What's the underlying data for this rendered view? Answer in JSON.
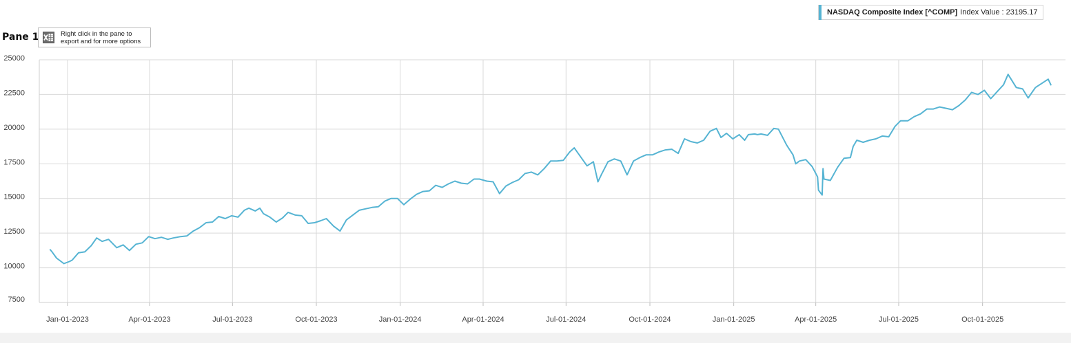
{
  "legend": {
    "series_name": "NASDAQ Composite Index [^COMP]",
    "value_text": "Index Value : 23195.17",
    "color": "#56b4d3"
  },
  "pane": {
    "title": "Pane 1",
    "export_hint": "Right click in the pane to export and for more options",
    "export_icon": "excel-icon"
  },
  "chart_data": {
    "type": "line",
    "title": "",
    "xlabel": "",
    "ylabel": "",
    "ylim": [
      7500,
      25000
    ],
    "xlim": [
      "2022-12-01",
      "2025-12-31"
    ],
    "grid": true,
    "legend_position": "top-right",
    "yticks": [
      "7500",
      "10000",
      "12500",
      "15000",
      "17500",
      "20000",
      "22500",
      "25000"
    ],
    "xticks": [
      {
        "date": "2023-01-01",
        "label": "Jan-01-2023"
      },
      {
        "date": "2023-04-01",
        "label": "Apr-01-2023"
      },
      {
        "date": "2023-07-01",
        "label": "Jul-01-2023"
      },
      {
        "date": "2023-10-01",
        "label": "Oct-01-2023"
      },
      {
        "date": "2024-01-01",
        "label": "Jan-01-2024"
      },
      {
        "date": "2024-04-01",
        "label": "Apr-01-2024"
      },
      {
        "date": "2024-07-01",
        "label": "Jul-01-2024"
      },
      {
        "date": "2024-10-01",
        "label": "Oct-01-2024"
      },
      {
        "date": "2025-01-01",
        "label": "Jan-01-2025"
      },
      {
        "date": "2025-04-01",
        "label": "Apr-01-2025"
      },
      {
        "date": "2025-07-01",
        "label": "Jul-01-2025"
      },
      {
        "date": "2025-10-01",
        "label": "Oct-01-2025"
      }
    ],
    "series": [
      {
        "name": "NASDAQ Composite Index [^COMP]",
        "color": "#56b4d3",
        "x": [
          "2022-12-13",
          "2022-12-15",
          "2022-12-20",
          "2022-12-23",
          "2022-12-28",
          "2023-01-03",
          "2023-01-06",
          "2023-01-13",
          "2023-01-20",
          "2023-01-27",
          "2023-02-02",
          "2023-02-08",
          "2023-02-15",
          "2023-02-24",
          "2023-03-03",
          "2023-03-10",
          "2023-03-17",
          "2023-03-24",
          "2023-03-31",
          "2023-04-07",
          "2023-04-14",
          "2023-04-21",
          "2023-04-27",
          "2023-05-05",
          "2023-05-12",
          "2023-05-19",
          "2023-05-26",
          "2023-06-02",
          "2023-06-09",
          "2023-06-16",
          "2023-06-23",
          "2023-06-30",
          "2023-07-07",
          "2023-07-14",
          "2023-07-19",
          "2023-07-26",
          "2023-07-31",
          "2023-08-04",
          "2023-08-11",
          "2023-08-18",
          "2023-08-25",
          "2023-08-31",
          "2023-09-08",
          "2023-09-15",
          "2023-09-22",
          "2023-09-29",
          "2023-10-06",
          "2023-10-12",
          "2023-10-20",
          "2023-10-27",
          "2023-11-03",
          "2023-11-10",
          "2023-11-17",
          "2023-11-24",
          "2023-12-01",
          "2023-12-08",
          "2023-12-15",
          "2023-12-22",
          "2023-12-29",
          "2024-01-05",
          "2024-01-12",
          "2024-01-19",
          "2024-01-26",
          "2024-02-02",
          "2024-02-09",
          "2024-02-16",
          "2024-02-23",
          "2024-03-01",
          "2024-03-08",
          "2024-03-15",
          "2024-03-22",
          "2024-03-28",
          "2024-04-05",
          "2024-04-12",
          "2024-04-19",
          "2024-04-26",
          "2024-05-03",
          "2024-05-10",
          "2024-05-17",
          "2024-05-24",
          "2024-05-31",
          "2024-06-07",
          "2024-06-14",
          "2024-06-21",
          "2024-06-28",
          "2024-07-05",
          "2024-07-10",
          "2024-07-17",
          "2024-07-24",
          "2024-07-31",
          "2024-08-05",
          "2024-08-09",
          "2024-08-16",
          "2024-08-23",
          "2024-08-30",
          "2024-09-06",
          "2024-09-13",
          "2024-09-20",
          "2024-09-27",
          "2024-10-04",
          "2024-10-11",
          "2024-10-18",
          "2024-10-25",
          "2024-11-01",
          "2024-11-08",
          "2024-11-15",
          "2024-11-22",
          "2024-11-29",
          "2024-12-06",
          "2024-12-13",
          "2024-12-18",
          "2024-12-24",
          "2024-12-31",
          "2025-01-07",
          "2025-01-13",
          "2025-01-17",
          "2025-01-24",
          "2025-01-27",
          "2025-01-31",
          "2025-02-07",
          "2025-02-14",
          "2025-02-19",
          "2025-02-28",
          "2025-03-07",
          "2025-03-10",
          "2025-03-14",
          "2025-03-21",
          "2025-03-28",
          "2025-04-03",
          "2025-04-04",
          "2025-04-08",
          "2025-04-09",
          "2025-04-10",
          "2025-04-17",
          "2025-04-25",
          "2025-05-02",
          "2025-05-09",
          "2025-05-12",
          "2025-05-16",
          "2025-05-23",
          "2025-05-30",
          "2025-06-06",
          "2025-06-13",
          "2025-06-20",
          "2025-06-27",
          "2025-07-03",
          "2025-07-11",
          "2025-07-18",
          "2025-07-25",
          "2025-08-01",
          "2025-08-08",
          "2025-08-15",
          "2025-08-22",
          "2025-08-29",
          "2025-09-05",
          "2025-09-12",
          "2025-09-19",
          "2025-09-26",
          "2025-10-03",
          "2025-10-10",
          "2025-10-17",
          "2025-10-24",
          "2025-10-29",
          "2025-11-07",
          "2025-11-14",
          "2025-11-20",
          "2025-11-28",
          "2025-12-05",
          "2025-12-12",
          "2025-12-15"
        ],
        "values": [
          11300,
          11150,
          10700,
          10550,
          10300,
          10450,
          10550,
          11080,
          11150,
          11600,
          12150,
          11900,
          12050,
          11450,
          11650,
          11250,
          11700,
          11800,
          12250,
          12100,
          12200,
          12050,
          12150,
          12250,
          12300,
          12650,
          12900,
          13250,
          13300,
          13700,
          13550,
          13750,
          13650,
          14150,
          14300,
          14100,
          14300,
          13900,
          13650,
          13300,
          13600,
          14000,
          13800,
          13750,
          13200,
          13250,
          13400,
          13550,
          13000,
          12650,
          13450,
          13800,
          14150,
          14250,
          14350,
          14400,
          14800,
          15000,
          15000,
          14550,
          14950,
          15300,
          15500,
          15550,
          15950,
          15800,
          16050,
          16250,
          16100,
          16050,
          16400,
          16400,
          16250,
          16200,
          15350,
          15900,
          16150,
          16350,
          16800,
          16900,
          16700,
          17150,
          17700,
          17700,
          17750,
          18350,
          18650,
          18000,
          17350,
          17650,
          16200,
          16750,
          17650,
          17850,
          17700,
          16700,
          17700,
          17950,
          18150,
          18150,
          18350,
          18500,
          18550,
          18250,
          19300,
          19100,
          19000,
          19200,
          19850,
          20050,
          19400,
          19700,
          19300,
          19600,
          19200,
          19600,
          19650,
          19600,
          19650,
          19550,
          20050,
          20000,
          18850,
          18150,
          17500,
          17700,
          17800,
          17300,
          16550,
          15600,
          15250,
          17150,
          16400,
          16300,
          17250,
          17900,
          17950,
          18750,
          19200,
          19050,
          19200,
          19300,
          19500,
          19450,
          20200,
          20600,
          20600,
          20900,
          21100,
          21450,
          21450,
          21600,
          21500,
          21400,
          21700,
          22100,
          22650,
          22500,
          22800,
          22200,
          22700,
          23200,
          23950,
          23000,
          22900,
          22250,
          23000,
          23300,
          23600,
          23195.17
        ]
      }
    ]
  }
}
